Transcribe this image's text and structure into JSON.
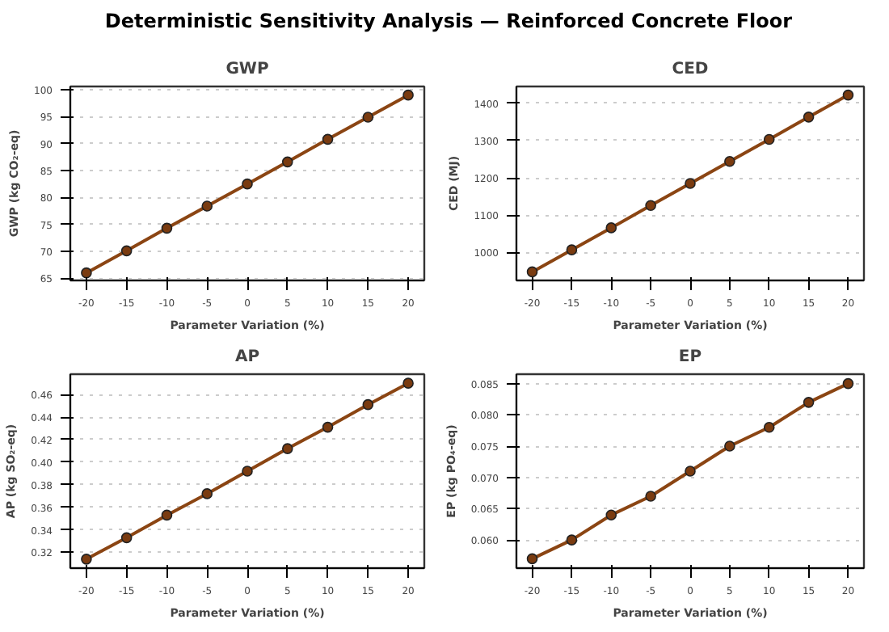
{
  "chart_data": [
    {
      "type": "line",
      "title": "GWP",
      "annotations": [
        "Deterministic Sensitivity Analysis — Reinforced Concrete Floor"
      ],
      "xlabel": "Parameter Variation (%)",
      "ylabel": "GWP (kg CO₂-eq)",
      "x": [
        -20,
        -15,
        -10,
        -5,
        0,
        5,
        10,
        15,
        20
      ],
      "xlim": [
        -22,
        22
      ],
      "xticks": [
        -20,
        -15,
        -10,
        -5,
        0,
        5,
        10,
        15,
        20
      ],
      "ylim": [
        64.6,
        100.6
      ],
      "yticks": [
        65,
        70,
        75,
        80,
        85,
        90,
        95,
        100
      ],
      "grid": "y",
      "marker": "circle",
      "line_style": "solid",
      "series": [
        {
          "color": "#8b4513",
          "values": [
            66,
            70.1,
            74.3,
            78.4,
            82.5,
            86.6,
            90.8,
            94.9,
            99
          ]
        }
      ]
    },
    {
      "type": "line",
      "title": "CED",
      "xlabel": "Parameter Variation (%)",
      "ylabel": "CED (MJ)",
      "x": [
        -20,
        -15,
        -10,
        -5,
        0,
        5,
        10,
        15,
        20
      ],
      "xlim": [
        -22,
        22
      ],
      "xticks": [
        -20,
        -15,
        -10,
        -5,
        0,
        5,
        10,
        15,
        20
      ],
      "ylim": [
        925,
        1445
      ],
      "yticks": [
        1000,
        1100,
        1200,
        1300,
        1400
      ],
      "grid": "y",
      "marker": "circle",
      "line_style": "solid",
      "series": [
        {
          "color": "#8b4513",
          "values": [
            948,
            1007,
            1066,
            1126,
            1185,
            1244,
            1303,
            1363,
            1422
          ]
        }
      ]
    },
    {
      "type": "line",
      "title": "AP",
      "xlabel": "Parameter Variation (%)",
      "ylabel": "AP (kg SO₂-eq)",
      "x": [
        -20,
        -15,
        -10,
        -5,
        0,
        5,
        10,
        15,
        20
      ],
      "xlim": [
        -22,
        22
      ],
      "xticks": [
        -20,
        -15,
        -10,
        -5,
        0,
        5,
        10,
        15,
        20
      ],
      "ylim": [
        0.306,
        0.478
      ],
      "yticks": [
        0.32,
        0.34,
        0.36,
        0.38,
        {
          "value": 0.4,
          "label": "0.40"
        },
        0.42,
        0.44,
        0.46
      ],
      "grid": "y",
      "marker": "circle",
      "line_style": "solid",
      "series": [
        {
          "color": "#8b4513",
          "values": [
            0.314,
            0.333,
            0.353,
            0.372,
            0.392,
            0.412,
            0.431,
            0.451,
            0.47
          ]
        }
      ]
    },
    {
      "type": "line",
      "title": "EP",
      "xlabel": "Parameter Variation (%)",
      "ylabel": "EP (kg PO₄-eq)",
      "x": [
        -20,
        -15,
        -10,
        -5,
        0,
        5,
        10,
        15,
        20
      ],
      "xlim": [
        -22,
        22
      ],
      "xticks": [
        -20,
        -15,
        -10,
        -5,
        0,
        5,
        10,
        15,
        20
      ],
      "ylim": [
        0.0555,
        0.0865
      ],
      "yticks": [
        {
          "value": 0.06,
          "label": "0.060"
        },
        0.065,
        {
          "value": 0.07,
          "label": "0.070"
        },
        0.075,
        {
          "value": 0.08,
          "label": "0.080"
        },
        0.085
      ],
      "grid": "y",
      "marker": "circle",
      "line_style": "solid",
      "series": [
        {
          "color": "#8b4513",
          "values": [
            0.057,
            0.06,
            0.064,
            0.067,
            0.071,
            0.075,
            0.078,
            0.082,
            0.085
          ]
        }
      ]
    }
  ]
}
